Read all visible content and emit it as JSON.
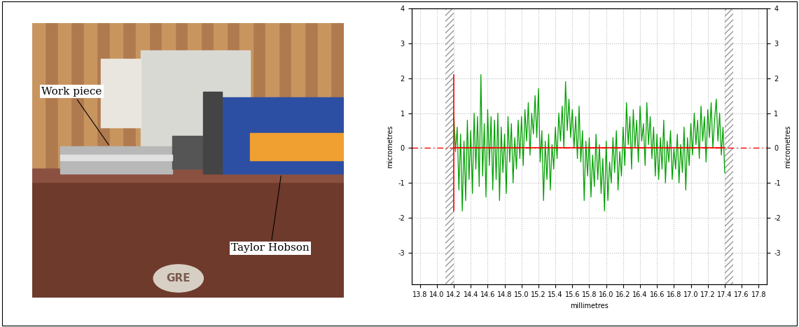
{
  "photo": {
    "labels": [
      "Work piece",
      "Taylor Hobson"
    ],
    "plate_text": "GRE"
  },
  "chart_data": {
    "type": "line",
    "x_label": "millimetres",
    "y_label": "micrometres",
    "y2_label": "micrometres",
    "x": [
      14.2,
      14.22,
      14.24,
      14.26,
      14.28,
      14.3,
      14.32,
      14.34,
      14.36,
      14.38,
      14.4,
      14.42,
      14.44,
      14.46,
      14.48,
      14.5,
      14.52,
      14.54,
      14.56,
      14.58,
      14.6,
      14.62,
      14.64,
      14.66,
      14.68,
      14.7,
      14.72,
      14.74,
      14.76,
      14.78,
      14.8,
      14.82,
      14.84,
      14.86,
      14.88,
      14.9,
      14.92,
      14.94,
      14.96,
      14.98,
      15.0,
      15.02,
      15.04,
      15.06,
      15.08,
      15.1,
      15.12,
      15.14,
      15.16,
      15.18,
      15.2,
      15.22,
      15.24,
      15.26,
      15.28,
      15.3,
      15.32,
      15.34,
      15.36,
      15.38,
      15.4,
      15.42,
      15.44,
      15.46,
      15.48,
      15.5,
      15.52,
      15.54,
      15.56,
      15.58,
      15.6,
      15.62,
      15.64,
      15.66,
      15.68,
      15.7,
      15.72,
      15.74,
      15.76,
      15.78,
      15.8,
      15.82,
      15.84,
      15.86,
      15.88,
      15.9,
      15.92,
      15.94,
      15.96,
      15.98,
      16.0,
      16.02,
      16.04,
      16.06,
      16.08,
      16.1,
      16.12,
      16.14,
      16.16,
      16.18,
      16.2,
      16.22,
      16.24,
      16.26,
      16.28,
      16.3,
      16.32,
      16.34,
      16.36,
      16.38,
      16.4,
      16.42,
      16.44,
      16.46,
      16.48,
      16.5,
      16.52,
      16.54,
      16.56,
      16.58,
      16.6,
      16.62,
      16.64,
      16.66,
      16.68,
      16.7,
      16.72,
      16.74,
      16.76,
      16.78,
      16.8,
      16.82,
      16.84,
      16.86,
      16.88,
      16.9,
      16.92,
      16.94,
      16.96,
      16.98,
      17.0,
      17.02,
      17.04,
      17.06,
      17.08,
      17.1,
      17.12,
      17.14,
      17.16,
      17.18,
      17.2,
      17.22,
      17.24,
      17.26,
      17.28,
      17.3,
      17.32,
      17.34,
      17.36,
      17.38,
      17.4
    ],
    "values": [
      1.0,
      -0.1,
      0.6,
      -1.2,
      0.4,
      -1.8,
      0.2,
      -1.5,
      0.8,
      -0.9,
      0.5,
      -1.3,
      1.0,
      -0.6,
      0.9,
      -1.1,
      2.1,
      -0.8,
      0.7,
      -1.4,
      1.1,
      -0.5,
      0.9,
      -1.2,
      0.8,
      -0.9,
      1.0,
      -1.5,
      0.6,
      -0.7,
      0.4,
      -1.3,
      0.9,
      -0.4,
      0.7,
      -1.0,
      0.3,
      -0.6,
      0.8,
      -0.3,
      0.9,
      -0.5,
      1.1,
      0.2,
      1.3,
      -0.2,
      1.0,
      0.4,
      1.5,
      0.3,
      1.7,
      -0.4,
      0.5,
      -1.5,
      0.2,
      -0.9,
      0.4,
      -1.2,
      0.1,
      -0.6,
      0.6,
      -0.3,
      1.0,
      0.2,
      1.2,
      0.0,
      1.9,
      0.5,
      1.4,
      0.3,
      1.1,
      0.0,
      0.9,
      -0.3,
      1.2,
      -0.4,
      0.5,
      -1.5,
      0.2,
      -0.8,
      0.3,
      -1.4,
      -0.2,
      -1.1,
      0.4,
      -0.9,
      0.1,
      -1.3,
      -0.3,
      -1.8,
      0.2,
      -1.5,
      -0.4,
      -1.0,
      0.3,
      -0.7,
      0.5,
      -1.2,
      -0.1,
      -0.8,
      0.6,
      -0.5,
      1.3,
      0.1,
      0.9,
      -0.6,
      1.1,
      0.0,
      0.8,
      -0.4,
      1.2,
      0.2,
      0.7,
      -0.5,
      1.3,
      0.1,
      0.9,
      -0.3,
      0.6,
      -0.8,
      0.4,
      -0.9,
      0.3,
      -0.6,
      0.8,
      -1.0,
      0.2,
      -0.4,
      0.5,
      -0.9,
      0.0,
      -0.6,
      0.4,
      -1.0,
      0.1,
      -0.7,
      0.6,
      -1.2,
      0.3,
      -0.5,
      0.7,
      -0.2,
      1.0,
      0.1,
      0.8,
      -0.3,
      1.2,
      0.2,
      0.9,
      -0.4,
      1.1,
      0.3,
      1.3,
      0.0,
      0.8,
      1.4,
      0.2,
      1.0,
      -0.2,
      0.6,
      -0.7
    ],
    "color": "#00a000",
    "reference_line": 0,
    "xlim": [
      13.7,
      17.9
    ],
    "xticks": [
      13.8,
      {
        "value": 14,
        "label": "14.0"
      },
      14.2,
      14.4,
      14.6,
      14.8,
      {
        "value": 15,
        "label": "15.0"
      },
      15.2,
      15.4,
      15.6,
      15.8,
      {
        "value": 16,
        "label": "16.0"
      },
      16.2,
      16.4,
      16.6,
      16.8,
      {
        "value": 17,
        "label": "17.0"
      },
      17.2,
      17.4,
      17.6,
      17.8
    ],
    "ylim": [
      -3.9,
      4
    ],
    "yticks": [
      -3,
      -2,
      -1,
      0,
      1,
      2,
      3,
      4
    ],
    "y2lim": [
      -3.9,
      4
    ],
    "y2ticks": [
      -3,
      -2,
      -1,
      0,
      1,
      2,
      3,
      4
    ],
    "grid": true
  }
}
